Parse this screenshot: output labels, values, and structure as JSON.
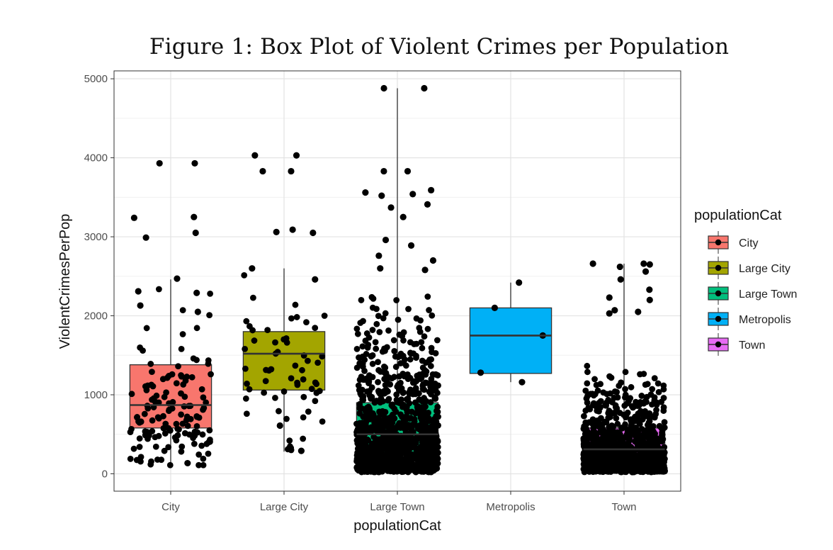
{
  "chart_data": {
    "type": "box",
    "title": "Figure 1: Box Plot of Violent Crimes per Population",
    "xlabel": "populationCat",
    "ylabel": "ViolentCrimesPerPop",
    "ylim": [
      -220,
      5100
    ],
    "yticks": [
      0,
      1000,
      2000,
      3000,
      4000,
      5000
    ],
    "grid": true,
    "legend": {
      "title": "populationCat",
      "position": "right"
    },
    "categories": [
      "City",
      "Large City",
      "Large Town",
      "Metropolis",
      "Town"
    ],
    "colors": [
      "#F8766D",
      "#A3A500",
      "#00BF7D",
      "#00B0F6",
      "#E76BF3"
    ],
    "boxes": [
      {
        "category": "City",
        "q1": 580,
        "median": 870,
        "q3": 1380,
        "whisker_low": 110,
        "whisker_high": 2460
      },
      {
        "category": "Large City",
        "q1": 1060,
        "median": 1520,
        "q3": 1800,
        "whisker_low": 280,
        "whisker_high": 2600
      },
      {
        "category": "Large Town",
        "q1": 250,
        "median": 500,
        "q3": 900,
        "whisker_low": 20,
        "whisker_high": 4880
      },
      {
        "category": "Metropolis",
        "q1": 1270,
        "median": 1750,
        "q3": 2100,
        "whisker_low": 1160,
        "whisker_high": 2420
      },
      {
        "category": "Town",
        "q1": 150,
        "median": 310,
        "q3": 580,
        "whisker_low": 20,
        "whisker_high": 2660
      }
    ],
    "notable_points": [
      {
        "category": "City",
        "values": [
          3930,
          3930,
          3250,
          3240,
          3050,
          2990,
          2470,
          2310,
          2290,
          2130,
          2050
        ]
      },
      {
        "category": "Large City",
        "values": [
          4030,
          4030,
          3830,
          3830,
          3090,
          3060,
          3050,
          2600,
          2460,
          610,
          290
        ]
      },
      {
        "category": "Large Town",
        "values": [
          4880,
          4880,
          3830,
          3830,
          3590,
          3560,
          3540,
          3520,
          3410,
          3370,
          3250,
          2960,
          2890,
          2760,
          2700,
          2600,
          2580
        ]
      },
      {
        "category": "Metropolis",
        "values": [
          2420,
          2100,
          1750,
          1280,
          1160
        ]
      },
      {
        "category": "Town",
        "values": [
          2660,
          2660,
          2650,
          2620,
          2560,
          2460,
          2330,
          2230,
          2200,
          2070,
          2050,
          2030
        ]
      }
    ],
    "jitter_counts": [
      140,
      60,
      1100,
      5,
      1000
    ]
  }
}
